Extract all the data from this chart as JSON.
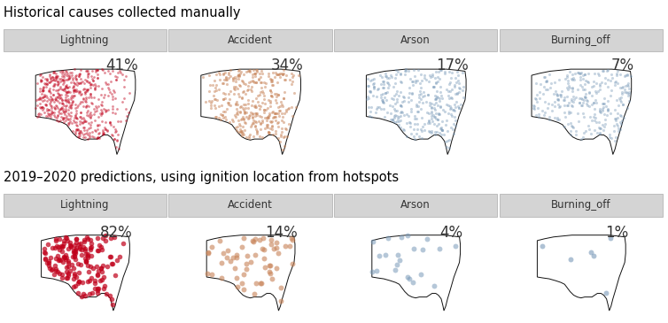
{
  "title1": "Historical causes collected manually",
  "title2": "2019–2020 predictions, using ignition location from hotspots",
  "row1_labels": [
    "Lightning",
    "Accident",
    "Arson",
    "Burning_off"
  ],
  "row2_labels": [
    "Lightning",
    "Accident",
    "Arson",
    "Burning_off"
  ],
  "row1_pcts": [
    "41%",
    "34%",
    "17%",
    "7%"
  ],
  "row2_pcts": [
    "82%",
    "14%",
    "4%",
    "1%"
  ],
  "lightning_color": "#C0001A",
  "accident_color": "#C8855A",
  "arson_color": "#7899B8",
  "burning_off_color": "#7899B8",
  "header_bg": "#D4D4D4",
  "header_text": "#333333",
  "outline_color": "#111111",
  "title_fontsize": 10.5,
  "header_fontsize": 8.5,
  "pct_fontsize": 12
}
